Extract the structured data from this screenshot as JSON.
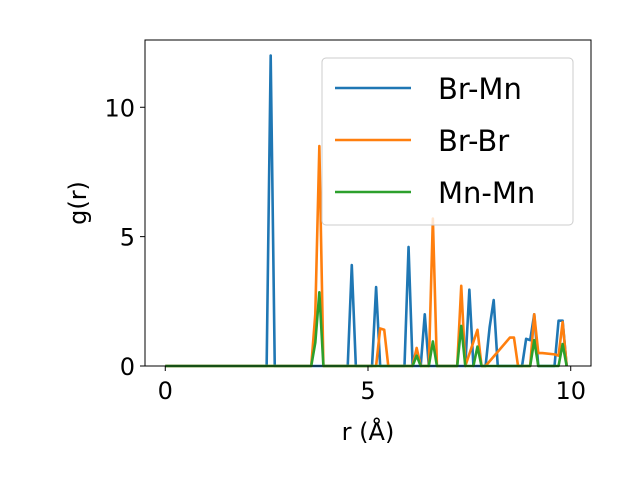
{
  "chart_data": {
    "type": "line",
    "title": "",
    "xlabel": "r (Å)",
    "ylabel": "g(r)",
    "xlim": [
      -0.5,
      10.5
    ],
    "ylim": [
      0,
      12.6
    ],
    "xticks": [
      0,
      5,
      10
    ],
    "yticks": [
      0,
      5,
      10
    ],
    "xtick_labels": [
      "0",
      "5",
      "10"
    ],
    "ytick_labels": [
      "0",
      "5",
      "10"
    ],
    "grid": false,
    "legend_position": "top-right",
    "series": [
      {
        "name": "Br-Mn",
        "color": "#1f77b4",
        "x": [
          0,
          2.5,
          2.6,
          2.7,
          2.8,
          3.6,
          4.5,
          4.6,
          4.7,
          5.1,
          5.2,
          5.3,
          5.9,
          6.0,
          6.1,
          6.3,
          6.4,
          6.5,
          7.4,
          7.5,
          7.6,
          7.9,
          8.0,
          8.1,
          8.2,
          8.8,
          8.9,
          9.0,
          9.1,
          9.2,
          9.6,
          9.7,
          9.8,
          9.9
        ],
        "y": [
          0,
          0,
          12.0,
          0,
          0,
          0,
          0,
          3.9,
          0,
          0,
          3.05,
          0,
          0,
          4.6,
          0,
          0,
          2.0,
          0,
          0,
          2.95,
          0,
          0,
          1.5,
          2.55,
          0,
          0,
          1.05,
          1.0,
          2.0,
          0,
          0,
          1.75,
          1.75,
          0
        ]
      },
      {
        "name": "Br-Br",
        "color": "#ff7f0e",
        "x": [
          0,
          3.6,
          3.7,
          3.8,
          3.9,
          4.0,
          5.1,
          5.2,
          5.3,
          5.4,
          5.5,
          6.0,
          6.1,
          6.2,
          6.3,
          6.4,
          6.5,
          6.6,
          6.7,
          7.1,
          7.2,
          7.3,
          7.4,
          7.7,
          7.8,
          7.9,
          8.5,
          8.6,
          8.7,
          8.8,
          9.0,
          9.1,
          9.2,
          9.3,
          9.6,
          9.7,
          9.8,
          9.9
        ],
        "y": [
          0,
          0,
          2.0,
          8.5,
          0,
          0,
          0,
          0,
          1.45,
          1.4,
          0,
          0,
          0,
          0.7,
          0,
          0,
          0,
          5.7,
          0,
          0,
          0,
          3.1,
          0,
          1.4,
          0,
          0,
          1.1,
          1.1,
          0,
          0,
          0,
          2.0,
          0.5,
          0.5,
          0.45,
          0.4,
          1.7,
          0
        ]
      },
      {
        "name": "Mn-Mn",
        "color": "#2ca02c",
        "x": [
          0,
          3.6,
          3.7,
          3.8,
          3.9,
          4.0,
          6.1,
          6.2,
          6.3,
          6.5,
          6.6,
          6.7,
          7.2,
          7.3,
          7.4,
          7.6,
          7.7,
          7.8,
          9.0,
          9.1,
          9.2,
          9.5,
          9.6,
          9.7,
          9.8,
          9.9
        ],
        "y": [
          0,
          0,
          0.9,
          2.85,
          0,
          0,
          0,
          0.4,
          0,
          0,
          0.95,
          0,
          0,
          1.55,
          0,
          0,
          0.75,
          0,
          0,
          1.0,
          0,
          0,
          0,
          0,
          0.85,
          0
        ]
      }
    ]
  }
}
